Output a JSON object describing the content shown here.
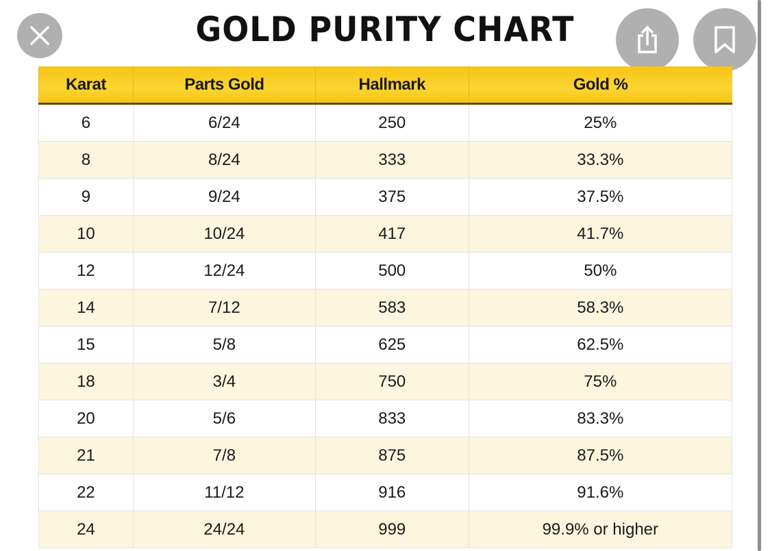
{
  "title": "GOLD PURITY CHART",
  "buttons": {
    "close": "close-icon",
    "share": "share-icon",
    "bookmark": "bookmark-icon"
  },
  "table": {
    "headers": [
      "Karat",
      "Parts Gold",
      "Hallmark",
      "Gold %"
    ],
    "rows": [
      [
        "6",
        "6/24",
        "250",
        "25%"
      ],
      [
        "8",
        "8/24",
        "333",
        "33.3%"
      ],
      [
        "9",
        "9/24",
        "375",
        "37.5%"
      ],
      [
        "10",
        "10/24",
        "417",
        "41.7%"
      ],
      [
        "12",
        "12/24",
        "500",
        "50%"
      ],
      [
        "14",
        "7/12",
        "583",
        "58.3%"
      ],
      [
        "15",
        "5/8",
        "625",
        "62.5%"
      ],
      [
        "18",
        "3/4",
        "750",
        "75%"
      ],
      [
        "20",
        "5/6",
        "833",
        "83.3%"
      ],
      [
        "21",
        "7/8",
        "875",
        "87.5%"
      ],
      [
        "22",
        "11/12",
        "916",
        "91.6%"
      ],
      [
        "24",
        "24/24",
        "999",
        "99.9% or higher"
      ]
    ]
  },
  "colors": {
    "header": "#f9cb1f",
    "alt_row": "#fdf6df"
  }
}
